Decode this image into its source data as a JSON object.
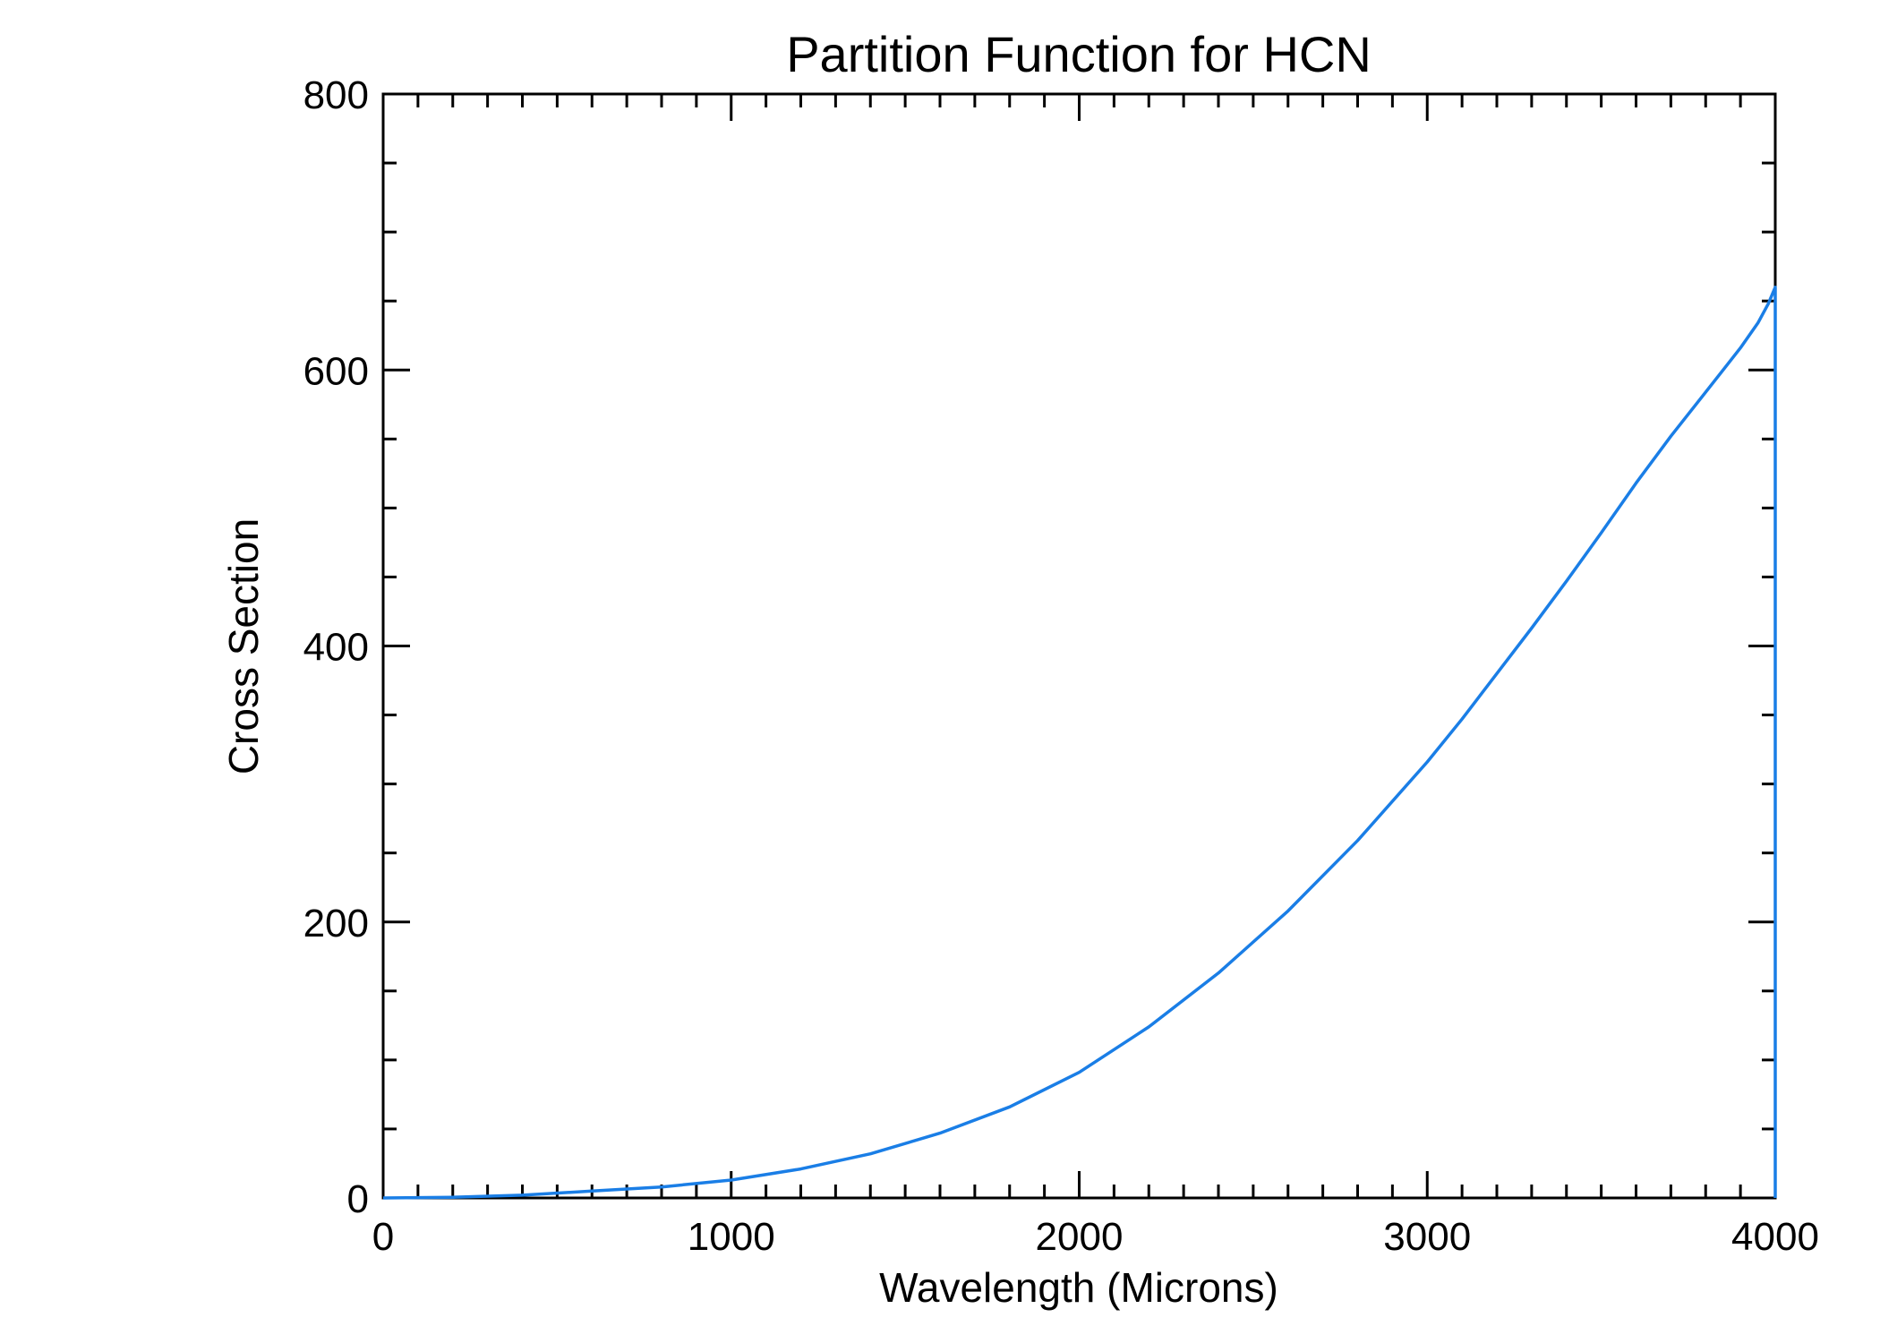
{
  "chart_data": {
    "type": "line",
    "title": "Partition Function for HCN",
    "xlabel": "Wavelength (Microns)",
    "ylabel": "Cross Section",
    "xlim": [
      0,
      4000
    ],
    "ylim": [
      0,
      800
    ],
    "xticks": [
      0,
      1000,
      2000,
      3000,
      4000
    ],
    "yticks": [
      0,
      200,
      400,
      600,
      800
    ],
    "x_minor_step": 100,
    "y_minor_step": 50,
    "grid": false,
    "legend": "none",
    "colors": {
      "series": "#1a7ee6",
      "axes": "#000000"
    },
    "series": [
      {
        "x": [
          0,
          200,
          400,
          600,
          800,
          1000,
          1200,
          1400,
          1600,
          1800,
          2000,
          2200,
          2400,
          2600,
          2800,
          3000,
          3100,
          3200,
          3300,
          3400,
          3500,
          3600,
          3700,
          3800,
          3850,
          3900,
          3950,
          3980,
          4000
        ],
        "y": [
          0,
          0.5,
          2,
          5,
          8,
          13,
          21,
          32,
          47,
          66,
          91,
          124,
          163,
          208,
          259,
          316,
          347,
          380,
          413,
          447,
          482,
          518,
          552,
          584,
          600,
          616,
          634,
          648,
          660
        ]
      }
    ]
  }
}
